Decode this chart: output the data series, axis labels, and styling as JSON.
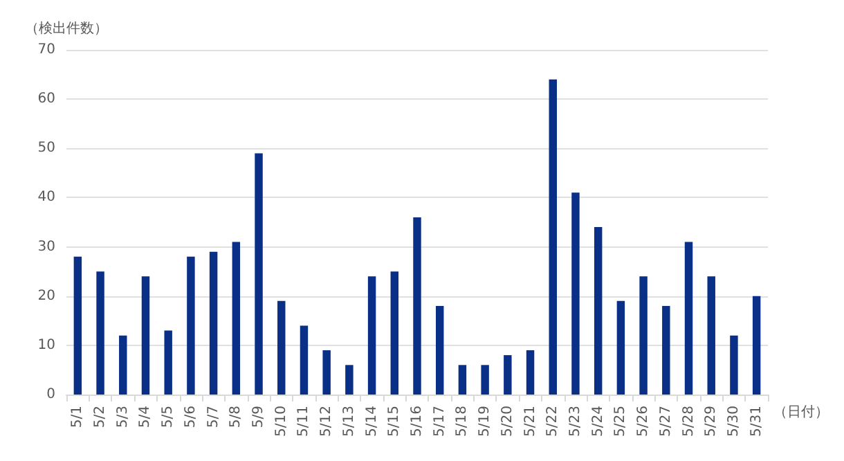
{
  "chart_data": {
    "type": "bar",
    "ylabel": "（検出件数）",
    "xlabel": "（日付）",
    "categories": [
      "5/1",
      "5/2",
      "5/3",
      "5/4",
      "5/5",
      "5/6",
      "5/7",
      "5/8",
      "5/9",
      "5/10",
      "5/11",
      "5/12",
      "5/13",
      "5/14",
      "5/15",
      "5/16",
      "5/17",
      "5/18",
      "5/19",
      "5/20",
      "5/21",
      "5/22",
      "5/23",
      "5/24",
      "5/25",
      "5/26",
      "5/27",
      "5/28",
      "5/29",
      "5/30",
      "5/31"
    ],
    "values": [
      28,
      25,
      12,
      24,
      13,
      28,
      29,
      31,
      49,
      19,
      14,
      9,
      6,
      24,
      25,
      36,
      18,
      6,
      6,
      8,
      9,
      64,
      41,
      34,
      19,
      24,
      18,
      31,
      24,
      12,
      20
    ],
    "color": "#0a2f87",
    "ylim": [
      0,
      70
    ],
    "yticks": [
      0,
      10,
      20,
      30,
      40,
      50,
      60,
      70
    ],
    "grid": "y"
  }
}
